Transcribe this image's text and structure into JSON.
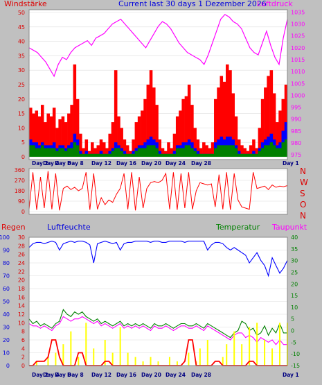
{
  "colors": {
    "background": "#c0c0c0",
    "plot_bg": "#ffffff",
    "grid": "#dddddd",
    "red": "#ff0000",
    "blue": "#0000ff",
    "green": "#008000",
    "magenta": "#ff00ff",
    "yellow": "#ffff00",
    "darkgreen": "#006400",
    "label_red": "#dd0000",
    "label_green": "#008000",
    "label_blue": "#0000dd",
    "label_magenta": "#ff00ff"
  },
  "header": {
    "title": "Current last 30 days 1 Dezember 2026"
  },
  "x_day_labels": [
    "Day 2",
    "Day 4",
    "Day 6",
    "Day 8",
    "Day 12",
    "Day 16",
    "Day 20",
    "Day 24",
    "Day 28",
    "Day 1"
  ],
  "chart_data": [
    {
      "type": "area",
      "id": "wind",
      "left_label": "Windstärke",
      "right_label": "Luftdruck",
      "left_ticks": [
        "0",
        "5",
        "10",
        "15",
        "20",
        "25",
        "30",
        "35",
        "40",
        "45",
        "50"
      ],
      "right_ticks": [
        "975",
        "980",
        "985",
        "990",
        "995",
        "1000",
        "1005",
        "1010",
        "1015",
        "1020",
        "1025",
        "1030",
        "1035"
      ],
      "ylim_left": [
        0,
        50
      ],
      "ylim_right": [
        973,
        1036
      ],
      "series": [
        {
          "role": "gust",
          "color": "red",
          "values": [
            17,
            15,
            16,
            14,
            18,
            12,
            15,
            14,
            17,
            10,
            13,
            14,
            12,
            15,
            18,
            32,
            20,
            8,
            3,
            6,
            2,
            5,
            3,
            4,
            6,
            5,
            3,
            8,
            12,
            30,
            14,
            10,
            6,
            4,
            2,
            6,
            12,
            14,
            16,
            20,
            25,
            30,
            24,
            18,
            6,
            3,
            2,
            5,
            3,
            8,
            14,
            16,
            20,
            21,
            25,
            18,
            10,
            6,
            3,
            5,
            4,
            3,
            5,
            20,
            24,
            28,
            26,
            32,
            30,
            22,
            14,
            6,
            4,
            3,
            2,
            4,
            6,
            3,
            10,
            20,
            24,
            28,
            30,
            22,
            12,
            16,
            20,
            25
          ]
        },
        {
          "role": "average",
          "color": "blue",
          "values": [
            6,
            5,
            5,
            4,
            5,
            4,
            4,
            4,
            5,
            3,
            4,
            4,
            3,
            4,
            5,
            8,
            6,
            2,
            1,
            2,
            1,
            1,
            1,
            1,
            2,
            1,
            1,
            2,
            3,
            5,
            4,
            3,
            2,
            1,
            1,
            2,
            3,
            4,
            4,
            5,
            6,
            7,
            6,
            5,
            2,
            1,
            1,
            1,
            1,
            2,
            4,
            4,
            5,
            5,
            6,
            5,
            3,
            2,
            1,
            1,
            1,
            1,
            1,
            5,
            6,
            7,
            6,
            7,
            7,
            6,
            4,
            2,
            1,
            1,
            1,
            1,
            2,
            1,
            3,
            5,
            6,
            7,
            8,
            6,
            4,
            5,
            9,
            12
          ]
        },
        {
          "role": "wind",
          "color": "green",
          "values": [
            4,
            4,
            3,
            3,
            4,
            3,
            3,
            3,
            3,
            2,
            3,
            3,
            2,
            3,
            3,
            5,
            4,
            1,
            1,
            1,
            1,
            1,
            1,
            1,
            1,
            1,
            1,
            1,
            2,
            3,
            3,
            2,
            1,
            1,
            1,
            1,
            2,
            3,
            3,
            3,
            4,
            4,
            4,
            3,
            1,
            1,
            1,
            1,
            1,
            1,
            3,
            3,
            3,
            4,
            4,
            3,
            2,
            1,
            1,
            1,
            1,
            1,
            1,
            3,
            4,
            4,
            4,
            4,
            4,
            4,
            3,
            1,
            1,
            1,
            1,
            1,
            1,
            1,
            2,
            3,
            4,
            4,
            5,
            4,
            3,
            3,
            5,
            6
          ]
        },
        {
          "role": "pressure",
          "axis": "right",
          "color": "magenta",
          "values": [
            1020,
            1019,
            1018,
            1016,
            1014,
            1011,
            1008,
            1013,
            1016,
            1015,
            1018,
            1020,
            1021,
            1022,
            1023,
            1021,
            1024,
            1025,
            1026,
            1028,
            1030,
            1031,
            1032,
            1030,
            1028,
            1026,
            1024,
            1022,
            1020,
            1023,
            1026,
            1029,
            1031,
            1030,
            1028,
            1025,
            1022,
            1020,
            1018,
            1017,
            1016,
            1015,
            1013,
            1017,
            1022,
            1027,
            1032,
            1034,
            1033,
            1031,
            1030,
            1028,
            1024,
            1020,
            1018,
            1017,
            1022,
            1027,
            1021,
            1016,
            1013,
            1024,
            1032
          ]
        }
      ]
    },
    {
      "type": "line",
      "id": "direction",
      "left_ticks": [
        "0",
        "90",
        "180",
        "270",
        "360"
      ],
      "right_ticks": [
        "N",
        "W",
        "S",
        "O",
        "N"
      ],
      "ylim": [
        0,
        360
      ],
      "series": [
        {
          "role": "wind_direction",
          "color": "red",
          "values": [
            20,
            340,
            15,
            300,
            30,
            350,
            20,
            330,
            10,
            200,
            220,
            190,
            210,
            180,
            200,
            340,
            15,
            330,
            20,
            120,
            60,
            100,
            80,
            150,
            200,
            330,
            20,
            340,
            10,
            300,
            30,
            200,
            250,
            260,
            250,
            270,
            330,
            20,
            340,
            15,
            330,
            30,
            340,
            20,
            180,
            250,
            240,
            230,
            240,
            40,
            320,
            20,
            340,
            15,
            330,
            100,
            40,
            30,
            20,
            340,
            200,
            210,
            220,
            190,
            230,
            210,
            220,
            215,
            225
          ]
        }
      ]
    },
    {
      "type": "line",
      "id": "climate",
      "left_labels": [
        "Regen",
        "Luftfeuchte"
      ],
      "right_labels": [
        "Temperatur",
        "Taupunkt"
      ],
      "rain_ticks": [
        "0",
        "2",
        "4",
        "6",
        "8",
        "10",
        "12",
        "14",
        "16",
        "18",
        "20",
        "22",
        "24",
        "26",
        "28",
        "30"
      ],
      "humidity_ticks": [
        "0",
        "10",
        "20",
        "30",
        "40",
        "50",
        "60",
        "70",
        "80",
        "90",
        "100"
      ],
      "temperature_ticks": [
        "-15",
        "-10",
        "-5",
        "0",
        "5",
        "10",
        "15",
        "20",
        "25",
        "30",
        "35",
        "40"
      ],
      "series": [
        {
          "role": "humidity",
          "color": "blue",
          "ylim": [
            0,
            100
          ],
          "values": [
            92,
            95,
            96,
            96,
            95,
            96,
            97,
            96,
            90,
            95,
            96,
            97,
            96,
            97,
            97,
            96,
            94,
            80,
            95,
            96,
            97,
            96,
            95,
            96,
            90,
            95,
            96,
            96,
            97,
            97,
            97,
            97,
            96,
            97,
            97,
            96,
            96,
            97,
            97,
            97,
            97,
            96,
            97,
            97,
            97,
            97,
            97,
            90,
            94,
            96,
            96,
            95,
            92,
            90,
            92,
            90,
            88,
            86,
            80,
            84,
            88,
            82,
            78,
            70,
            84,
            78,
            72,
            76,
            82
          ]
        },
        {
          "role": "temperature",
          "color": "green",
          "ylim": [
            -15,
            40
          ],
          "values": [
            5,
            3,
            4,
            2,
            3,
            2,
            1,
            3,
            4,
            9,
            7,
            6,
            8,
            7,
            8,
            6,
            5,
            4,
            5,
            3,
            4,
            3,
            2,
            3,
            4,
            2,
            3,
            2,
            3,
            2,
            3,
            2,
            1,
            3,
            2,
            2,
            3,
            2,
            1,
            2,
            3,
            3,
            2,
            2,
            3,
            2,
            1,
            3,
            2,
            1,
            0,
            -1,
            -2,
            -3,
            -1,
            0,
            4,
            3,
            0,
            1,
            -2,
            -1,
            2,
            -2,
            1,
            -1,
            3,
            -1,
            -1
          ]
        },
        {
          "role": "dewpoint",
          "color": "magenta",
          "ylim": [
            -15,
            40
          ],
          "values": [
            3,
            2,
            2,
            1,
            2,
            1,
            0,
            2,
            3,
            6,
            5,
            4,
            5,
            5,
            6,
            5,
            4,
            3,
            4,
            2,
            3,
            2,
            1,
            2,
            3,
            1,
            2,
            1,
            2,
            1,
            2,
            1,
            0,
            2,
            1,
            1,
            2,
            1,
            0,
            1,
            2,
            2,
            1,
            1,
            2,
            1,
            0,
            2,
            1,
            0,
            -1,
            -2,
            -3,
            -4,
            -2,
            -1,
            -1,
            -3,
            -2,
            -3,
            -5,
            -3,
            -4,
            -5,
            -4,
            -6,
            -4,
            -6,
            -6
          ]
        },
        {
          "role": "rain_rate",
          "color": "yellow",
          "ylim": [
            0,
            30
          ],
          "values": [
            0,
            0,
            1,
            0,
            0,
            2,
            0,
            3,
            0,
            5,
            0,
            8,
            0,
            2,
            0,
            10,
            0,
            4,
            0,
            0,
            6,
            0,
            3,
            0,
            9,
            0,
            3,
            0,
            2,
            0,
            1,
            0,
            2,
            0,
            1,
            0,
            0,
            2,
            0,
            1,
            0,
            0,
            3,
            0,
            1,
            4,
            0,
            6,
            0,
            0,
            0,
            2,
            5,
            0,
            8,
            0,
            5,
            0,
            9,
            0,
            10,
            0,
            6,
            0,
            4,
            0,
            10,
            0,
            10
          ]
        },
        {
          "role": "rain_total",
          "color": "red",
          "ylim": [
            0,
            30
          ],
          "values": [
            0,
            0,
            1,
            1,
            1,
            2,
            6,
            6,
            2,
            0,
            0,
            0,
            0,
            3,
            3,
            0,
            0,
            0,
            0,
            0,
            1,
            1,
            0,
            0,
            0,
            0,
            0,
            0,
            0,
            0,
            0,
            0,
            0,
            0,
            0,
            0,
            0,
            0,
            0,
            0,
            0,
            1,
            6,
            6,
            0,
            0,
            0,
            0,
            0,
            1,
            1,
            0,
            0,
            0,
            0,
            0,
            0,
            0,
            1,
            1,
            0,
            0,
            0,
            0,
            0,
            0,
            0,
            0,
            0
          ]
        }
      ]
    }
  ]
}
